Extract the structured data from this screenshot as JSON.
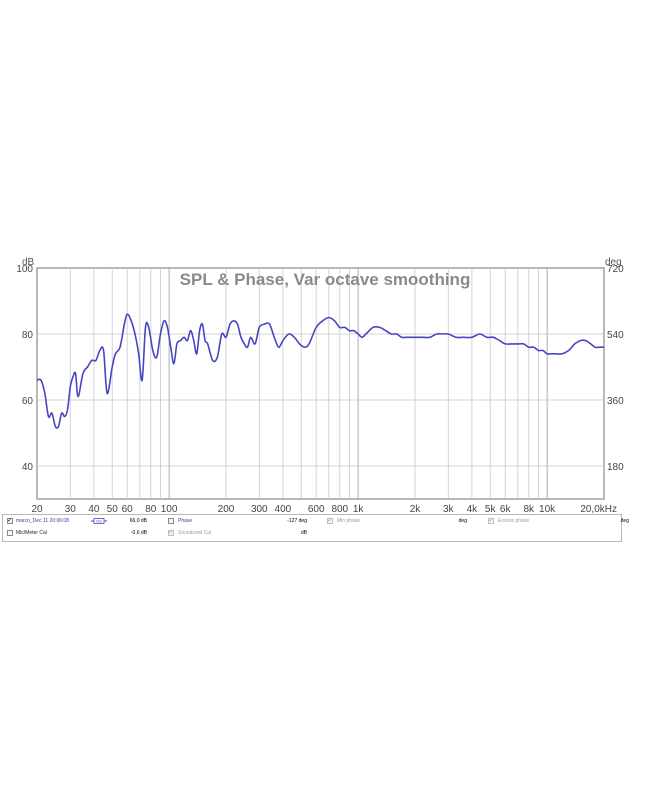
{
  "chart_data": {
    "type": "line",
    "title": "SPL & Phase, Var octave smoothing",
    "x_scale": "log",
    "xlim": [
      20,
      20000
    ],
    "ylim": [
      30,
      100
    ],
    "ylabel": "dB",
    "y2label": "deg",
    "y_ticks": [
      40,
      60,
      80,
      100
    ],
    "y2_ticks": [
      180,
      360,
      540,
      720
    ],
    "x_ticks": [
      {
        "v": 20,
        "label": "20"
      },
      {
        "v": 30,
        "label": "30"
      },
      {
        "v": 40,
        "label": "40"
      },
      {
        "v": 50,
        "label": "50"
      },
      {
        "v": 60,
        "label": "60"
      },
      {
        "v": 80,
        "label": "80"
      },
      {
        "v": 100,
        "label": "100"
      },
      {
        "v": 200,
        "label": "200"
      },
      {
        "v": 300,
        "label": "300"
      },
      {
        "v": 400,
        "label": "400"
      },
      {
        "v": 600,
        "label": "600"
      },
      {
        "v": 800,
        "label": "800"
      },
      {
        "v": 1000,
        "label": "1k"
      },
      {
        "v": 2000,
        "label": "2k"
      },
      {
        "v": 3000,
        "label": "3k"
      },
      {
        "v": 4000,
        "label": "4k"
      },
      {
        "v": 5000,
        "label": "5k"
      },
      {
        "v": 6000,
        "label": "6k"
      },
      {
        "v": 8000,
        "label": "8k"
      },
      {
        "v": 10000,
        "label": "10k"
      },
      {
        "v": 20000,
        "label": "20,0kHz"
      }
    ],
    "grid": true,
    "colors": {
      "series": "#4646c0",
      "grid": "#c8c8c8",
      "major_grid": "#9a9a9a",
      "title": "#8a8a8a",
      "frame": "#a0a0a0"
    },
    "series": [
      {
        "name": "marco_Dec 11 20:06:08",
        "x": [
          20,
          21,
          22,
          23,
          24,
          25,
          26,
          27,
          28,
          29,
          30,
          31,
          32,
          33,
          35,
          37,
          39,
          41,
          43,
          45,
          47,
          50,
          52,
          55,
          58,
          60,
          63,
          66,
          69,
          72,
          75,
          78,
          82,
          86,
          90,
          94,
          98,
          102,
          106,
          110,
          115,
          120,
          125,
          130,
          135,
          140,
          145,
          150,
          155,
          160,
          170,
          180,
          190,
          200,
          210,
          220,
          230,
          240,
          250,
          260,
          270,
          285,
          300,
          320,
          340,
          360,
          380,
          400,
          430,
          460,
          490,
          520,
          550,
          600,
          650,
          700,
          750,
          800,
          850,
          900,
          950,
          1000,
          1050,
          1100,
          1200,
          1300,
          1400,
          1500,
          1600,
          1700,
          1800,
          1900,
          2000,
          2200,
          2400,
          2600,
          2800,
          3000,
          3300,
          3600,
          4000,
          4400,
          4800,
          5200,
          5600,
          6000,
          6500,
          7000,
          7500,
          8000,
          8500,
          9000,
          9500,
          10000,
          10500,
          11000,
          12000,
          13000,
          14000,
          15000,
          16000,
          17000,
          18000,
          19000,
          20000
        ],
        "y": [
          66,
          66,
          62,
          55,
          56,
          52,
          52,
          56,
          55,
          57,
          64,
          67,
          68,
          61,
          68,
          70,
          72,
          72,
          75,
          75,
          62,
          70,
          74,
          76,
          83,
          86,
          84,
          80,
          74,
          66,
          82,
          82,
          75,
          73,
          80,
          84,
          82,
          76,
          71,
          77,
          78,
          79,
          78,
          81,
          78,
          74,
          81,
          83,
          78,
          77,
          72,
          73,
          80,
          79,
          83,
          84,
          83,
          79,
          77,
          76,
          79,
          77,
          82,
          83,
          83,
          79,
          76,
          78,
          80,
          79,
          77,
          76,
          77,
          82,
          84,
          85,
          84,
          82,
          82,
          81,
          81,
          80,
          79,
          80,
          82,
          82,
          81,
          80,
          80,
          79,
          79,
          79,
          79,
          79,
          79,
          80,
          80,
          80,
          79,
          79,
          79,
          80,
          79,
          79,
          78,
          77,
          77,
          77,
          77,
          76,
          76,
          75,
          75,
          74,
          74,
          74,
          74,
          75,
          77,
          78,
          78,
          77,
          76,
          76,
          76
        ]
      }
    ]
  },
  "legend": {
    "row1": {
      "measurement_name": "marco_Dec 11 20:06:08",
      "swatch_label": "Var",
      "spl_value": "66,0 dB",
      "phase_label": "Phase",
      "phase_value": "-127 deg",
      "min_phase_label": "Min phase",
      "min_phase_unit": "deg",
      "excess_phase_label": "Excess phase",
      "excess_phase_unit": "deg"
    },
    "row2": {
      "cal_label": "Mic/Meter Cal",
      "cal_value": "-0,6 dB",
      "soundcard_label": "Soundcard Cal",
      "soundcard_unit": "dB"
    }
  }
}
